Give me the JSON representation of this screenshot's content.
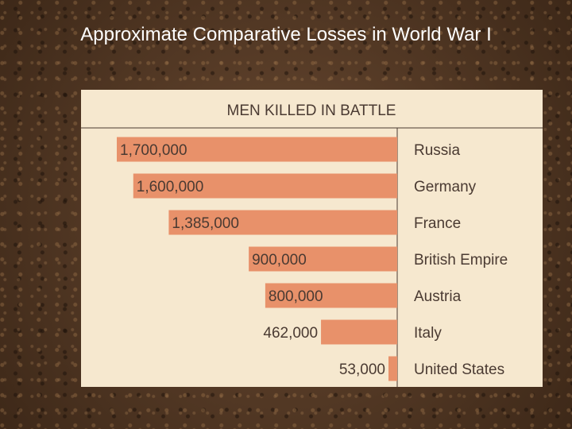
{
  "slide": {
    "title": "Approximate Comparative Losses in World War I"
  },
  "colors": {
    "bar": "#e8916a",
    "panel": "#f6e8cf",
    "text": "#4a3a32"
  },
  "chart_data": {
    "type": "bar",
    "orientation": "horizontal",
    "title": "MEN KILLED IN BATTLE",
    "categories": [
      "Russia",
      "Germany",
      "France",
      "British Empire",
      "Austria",
      "Italy",
      "United States"
    ],
    "values": [
      1700000,
      1600000,
      1385000,
      900000,
      800000,
      462000,
      53000
    ],
    "value_labels": [
      "1,700,000",
      "1,600,000",
      "1,385,000",
      "900,000",
      "800,000",
      "462,000",
      "53,000"
    ],
    "xlim": [
      0,
      1700000
    ],
    "grid": false,
    "legend": "none"
  }
}
